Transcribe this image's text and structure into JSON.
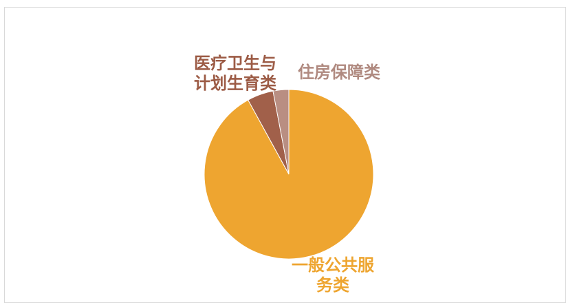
{
  "chart_data": {
    "type": "pie",
    "title": "",
    "slices": [
      {
        "label_lines": [
          "一般公共服",
          "务类"
        ],
        "value": 92,
        "color": "#EEA530",
        "label_color": "#EEA530"
      },
      {
        "label_lines": [
          "医疗卫生与",
          "计划生育类"
        ],
        "value": 5,
        "color": "#A1604A",
        "label_color": "#9C5B45"
      },
      {
        "label_lines": [
          "住房保障类"
        ],
        "value": 3,
        "color": "#B98E82",
        "label_color": "#B08A80"
      }
    ]
  }
}
